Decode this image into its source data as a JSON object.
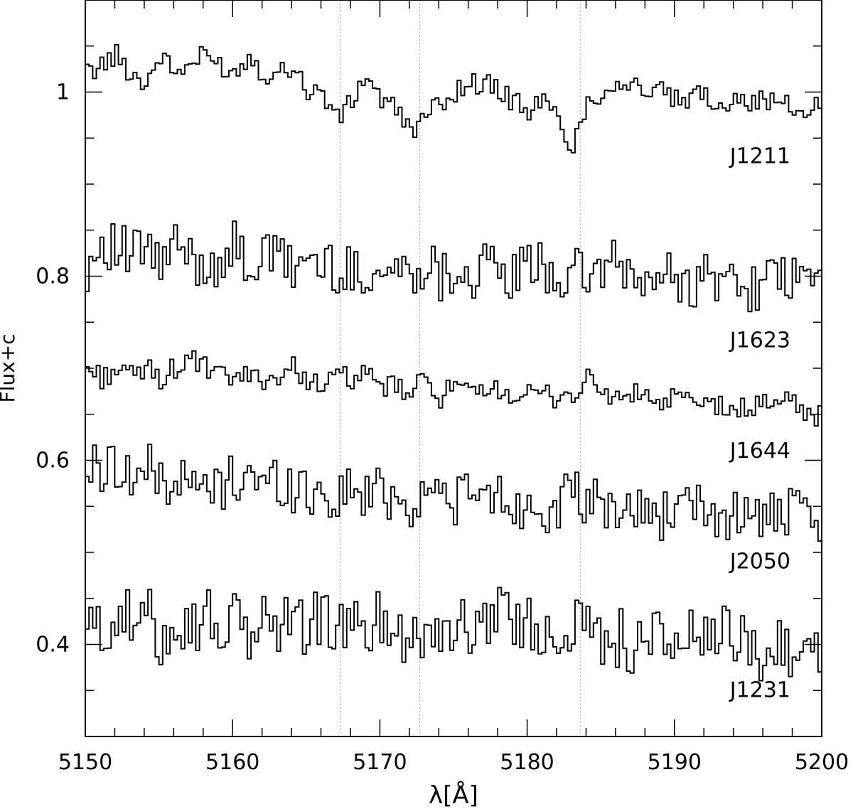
{
  "chart_data": {
    "type": "line",
    "xlabel": "λ[Å]",
    "ylabel": "Flux+c",
    "xlim": [
      5150,
      5200
    ],
    "ylim": [
      0.3,
      1.1
    ],
    "x_ticks": [
      "5150",
      "5160",
      "5170",
      "5180",
      "5190",
      "5200"
    ],
    "y_ticks": [
      "0.4",
      "0.6",
      "0.8",
      "1"
    ],
    "grid": false,
    "legend": "none",
    "reference_lines_x": [
      5167.3,
      5172.7,
      5183.6
    ],
    "step_style": "histogram",
    "colors": {
      "line": "#000000",
      "reference": "#999999"
    },
    "series": [
      {
        "name": "J1211",
        "level": 1.0,
        "x": [
          5150,
          5151,
          5152,
          5153,
          5154,
          5155,
          5156,
          5157,
          5158,
          5159,
          5160,
          5161,
          5162,
          5163,
          5164,
          5165,
          5166,
          5167,
          5168,
          5169,
          5170,
          5171,
          5172,
          5173,
          5174,
          5175,
          5176,
          5177,
          5178,
          5179,
          5180,
          5181,
          5182,
          5183,
          5184,
          5185,
          5186,
          5187,
          5188,
          5189,
          5190,
          5191,
          5192,
          5193,
          5194,
          5195,
          5196,
          5197,
          5198,
          5199,
          5200
        ],
        "y": [
          1.02,
          1.03,
          1.04,
          1.02,
          1.01,
          1.04,
          1.02,
          1.03,
          1.04,
          1.03,
          1.02,
          1.04,
          1.02,
          1.02,
          1.03,
          1.0,
          1.0,
          0.97,
          0.99,
          1.02,
          0.99,
          0.98,
          0.96,
          0.97,
          0.99,
          1.0,
          1.01,
          1.01,
          1.0,
          0.99,
          0.98,
          0.99,
          0.97,
          0.94,
          0.99,
          1.0,
          1.01,
          1.01,
          1.0,
          1.0,
          0.99,
          0.99,
          1.0,
          0.98,
          1.0,
          0.99,
          0.99,
          0.99,
          0.98,
          0.98,
          0.99
        ]
      },
      {
        "name": "J1623",
        "level": 0.8,
        "x": [
          5150,
          5151,
          5152,
          5153,
          5154,
          5155,
          5156,
          5157,
          5158,
          5159,
          5160,
          5161,
          5162,
          5163,
          5164,
          5165,
          5166,
          5167,
          5168,
          5169,
          5170,
          5171,
          5172,
          5173,
          5174,
          5175,
          5176,
          5177,
          5178,
          5179,
          5180,
          5181,
          5182,
          5183,
          5184,
          5185,
          5186,
          5187,
          5188,
          5189,
          5190,
          5191,
          5192,
          5193,
          5194,
          5195,
          5196,
          5197,
          5198,
          5199,
          5200
        ],
        "y": [
          0.81,
          0.84,
          0.83,
          0.82,
          0.83,
          0.81,
          0.83,
          0.82,
          0.81,
          0.82,
          0.83,
          0.81,
          0.82,
          0.82,
          0.81,
          0.82,
          0.81,
          0.81,
          0.8,
          0.81,
          0.8,
          0.81,
          0.8,
          0.82,
          0.8,
          0.81,
          0.8,
          0.81,
          0.8,
          0.8,
          0.81,
          0.81,
          0.8,
          0.8,
          0.8,
          0.81,
          0.81,
          0.8,
          0.79,
          0.8,
          0.8,
          0.79,
          0.8,
          0.79,
          0.8,
          0.79,
          0.79,
          0.8,
          0.79,
          0.8,
          0.8
        ]
      },
      {
        "name": "J1644",
        "level": 0.68,
        "x": [
          5150,
          5151,
          5152,
          5153,
          5154,
          5155,
          5156,
          5157,
          5158,
          5159,
          5160,
          5161,
          5162,
          5163,
          5164,
          5165,
          5166,
          5167,
          5168,
          5169,
          5170,
          5171,
          5172,
          5173,
          5174,
          5175,
          5176,
          5177,
          5178,
          5179,
          5180,
          5181,
          5182,
          5183,
          5184,
          5185,
          5186,
          5187,
          5188,
          5189,
          5190,
          5191,
          5192,
          5193,
          5194,
          5195,
          5196,
          5197,
          5198,
          5199,
          5200
        ],
        "y": [
          0.7,
          0.69,
          0.7,
          0.69,
          0.7,
          0.69,
          0.7,
          0.71,
          0.7,
          0.69,
          0.69,
          0.69,
          0.69,
          0.69,
          0.7,
          0.69,
          0.68,
          0.69,
          0.69,
          0.69,
          0.68,
          0.68,
          0.67,
          0.69,
          0.67,
          0.68,
          0.67,
          0.67,
          0.68,
          0.67,
          0.67,
          0.67,
          0.67,
          0.67,
          0.69,
          0.67,
          0.67,
          0.67,
          0.67,
          0.66,
          0.67,
          0.66,
          0.66,
          0.66,
          0.65,
          0.66,
          0.66,
          0.67,
          0.66,
          0.65,
          0.65
        ]
      },
      {
        "name": "J2050",
        "level": 0.56,
        "x": [
          5150,
          5151,
          5152,
          5153,
          5154,
          5155,
          5156,
          5157,
          5158,
          5159,
          5160,
          5161,
          5162,
          5163,
          5164,
          5165,
          5166,
          5167,
          5168,
          5169,
          5170,
          5171,
          5172,
          5173,
          5174,
          5175,
          5176,
          5177,
          5178,
          5179,
          5180,
          5181,
          5182,
          5183,
          5184,
          5185,
          5186,
          5187,
          5188,
          5189,
          5190,
          5191,
          5192,
          5193,
          5194,
          5195,
          5196,
          5197,
          5198,
          5199,
          5200
        ],
        "y": [
          0.59,
          0.59,
          0.6,
          0.58,
          0.59,
          0.58,
          0.58,
          0.57,
          0.57,
          0.57,
          0.58,
          0.59,
          0.57,
          0.58,
          0.57,
          0.57,
          0.56,
          0.56,
          0.57,
          0.56,
          0.57,
          0.56,
          0.55,
          0.57,
          0.56,
          0.56,
          0.56,
          0.56,
          0.56,
          0.55,
          0.55,
          0.55,
          0.55,
          0.56,
          0.55,
          0.55,
          0.55,
          0.54,
          0.55,
          0.54,
          0.55,
          0.54,
          0.55,
          0.54,
          0.54,
          0.54,
          0.54,
          0.54,
          0.54,
          0.53,
          0.53
        ]
      },
      {
        "name": "J1231",
        "level": 0.42,
        "x": [
          5150,
          5151,
          5152,
          5153,
          5154,
          5155,
          5156,
          5157,
          5158,
          5159,
          5160,
          5161,
          5162,
          5163,
          5164,
          5165,
          5166,
          5167,
          5168,
          5169,
          5170,
          5171,
          5172,
          5173,
          5174,
          5175,
          5176,
          5177,
          5178,
          5179,
          5180,
          5181,
          5182,
          5183,
          5184,
          5185,
          5186,
          5187,
          5188,
          5189,
          5190,
          5191,
          5192,
          5193,
          5194,
          5195,
          5196,
          5197,
          5198,
          5199,
          5200
        ],
        "y": [
          0.42,
          0.41,
          0.44,
          0.42,
          0.43,
          0.41,
          0.43,
          0.42,
          0.43,
          0.42,
          0.42,
          0.41,
          0.43,
          0.42,
          0.43,
          0.42,
          0.43,
          0.42,
          0.41,
          0.42,
          0.43,
          0.41,
          0.42,
          0.41,
          0.42,
          0.42,
          0.41,
          0.43,
          0.45,
          0.42,
          0.42,
          0.41,
          0.42,
          0.43,
          0.41,
          0.41,
          0.41,
          0.4,
          0.41,
          0.4,
          0.41,
          0.41,
          0.4,
          0.41,
          0.4,
          0.4,
          0.39,
          0.4,
          0.4,
          0.39,
          0.4
        ]
      }
    ]
  }
}
